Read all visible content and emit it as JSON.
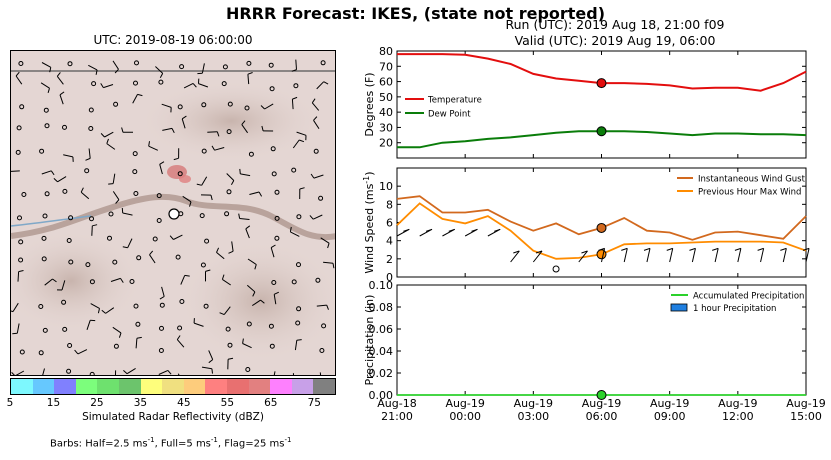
{
  "title": "HRRR Forecast: IKES, (state not reported)",
  "map": {
    "title": "UTC: 2019-08-19 06:00:00",
    "colorbar_label": "Simulated Radar Reflectivity (dBZ)",
    "colorbar_ticks": [
      "5",
      "15",
      "25",
      "35",
      "45",
      "55",
      "65",
      "75"
    ],
    "colorbar_colors": [
      "#7df8fe",
      "#66c8fe",
      "#8080fe",
      "#7cfe7c",
      "#6ee16e",
      "#6cc46c",
      "#fefe7c",
      "#f0e080",
      "#fdcc7c",
      "#fe8080",
      "#e87070",
      "#e28080",
      "#fe80fe",
      "#c8a0e8",
      "#808080"
    ],
    "barb_note": "Barbs: Half=2.5 ms",
    "barb_note_sup1": "-1",
    "barb_note_mid": ", Full=5 ms",
    "barb_note_sup2": "-1",
    "barb_note_end": ", Flag=25 ms",
    "barb_note_sup3": "-1"
  },
  "run": "Run (UTC): 2019 Aug 18, 21:00 f09",
  "valid": "Valid (UTC): 2019 Aug 19, 06:00",
  "x_ticks": [
    {
      "l1": "Aug-18",
      "l2": "21:00",
      "hour": 0
    },
    {
      "l1": "Aug-19",
      "l2": "00:00",
      "hour": 3
    },
    {
      "l1": "Aug-19",
      "l2": "03:00",
      "hour": 6
    },
    {
      "l1": "Aug-19",
      "l2": "06:00",
      "hour": 9
    },
    {
      "l1": "Aug-19",
      "l2": "09:00",
      "hour": 12
    },
    {
      "l1": "Aug-19",
      "l2": "12:00",
      "hour": 15
    },
    {
      "l1": "Aug-19",
      "l2": "15:00",
      "hour": 18
    }
  ],
  "chart_data": [
    {
      "type": "line",
      "ylabel": "Degrees (F)",
      "ylim": [
        10,
        80
      ],
      "yticks": [
        20,
        30,
        40,
        50,
        60,
        70,
        80
      ],
      "x_hours": [
        0,
        1,
        2,
        3,
        4,
        5,
        6,
        7,
        8,
        9,
        10,
        11,
        12,
        13,
        14,
        15,
        16,
        17,
        18
      ],
      "series": [
        {
          "name": "Temperature",
          "color": "#e30e0e",
          "values": [
            78,
            78,
            78,
            77.5,
            75,
            71.5,
            65,
            62,
            60.5,
            59,
            59,
            58.5,
            57.5,
            55.5,
            56,
            56,
            54,
            59,
            66.5
          ]
        },
        {
          "name": "Dew Point",
          "color": "#0a7d0a",
          "values": [
            17,
            17,
            20,
            21,
            22.5,
            23.5,
            25,
            26.5,
            27.5,
            27.5,
            27.5,
            27,
            26,
            25,
            26,
            26,
            25.5,
            25.5,
            25
          ]
        }
      ],
      "marker_hour": 9,
      "legend": "center-left"
    },
    {
      "type": "line",
      "ylabel": "Wind Speed (ms",
      "ylabel_sup": "-1",
      "ylabel_end": ")",
      "ylim": [
        0,
        12
      ],
      "yticks": [
        0,
        2,
        4,
        6,
        8,
        10
      ],
      "x_hours": [
        0,
        1,
        2,
        3,
        4,
        5,
        6,
        7,
        8,
        9,
        10,
        11,
        12,
        13,
        14,
        15,
        16,
        17,
        18
      ],
      "series": [
        {
          "name": "Instantaneous Wind Gust",
          "color": "#d2691e",
          "values": [
            8.6,
            8.9,
            7.1,
            7.1,
            7.4,
            6.1,
            5.1,
            5.9,
            4.7,
            5.4,
            6.5,
            5.1,
            4.9,
            4.1,
            4.9,
            5.0,
            4.6,
            4.2,
            6.7
          ]
        },
        {
          "name": "Previous Hour Max Wind",
          "color": "#ff8c00",
          "values": [
            5.7,
            8.1,
            6.4,
            5.9,
            6.7,
            5.1,
            2.9,
            2.0,
            2.1,
            2.5,
            3.6,
            3.7,
            3.7,
            3.8,
            3.9,
            3.9,
            3.9,
            3.8,
            2.9
          ]
        }
      ],
      "marker_hour": 9,
      "legend": "top-right"
    },
    {
      "type": "line",
      "ylabel": "Precipitation (in)",
      "ylim": [
        0,
        0.1
      ],
      "yticks": [
        "0.00",
        "0.02",
        "0.04",
        "0.06",
        "0.08",
        "0.10"
      ],
      "x_hours": [
        0,
        1,
        2,
        3,
        4,
        5,
        6,
        7,
        8,
        9,
        10,
        11,
        12,
        13,
        14,
        15,
        16,
        17,
        18
      ],
      "series": [
        {
          "name": "Accumulated Precipitation",
          "color": "#2bd12b",
          "values": [
            0,
            0,
            0,
            0,
            0,
            0,
            0,
            0,
            0,
            0,
            0,
            0,
            0,
            0,
            0,
            0,
            0,
            0,
            0
          ]
        },
        {
          "name": "1 hour Precipitation",
          "color": "#1f7fe0",
          "values": [
            0,
            0,
            0,
            0,
            0,
            0,
            0,
            0,
            0,
            0,
            0,
            0,
            0,
            0,
            0,
            0,
            0,
            0,
            0
          ]
        }
      ],
      "marker_hour": 9,
      "legend": "top-right"
    }
  ]
}
